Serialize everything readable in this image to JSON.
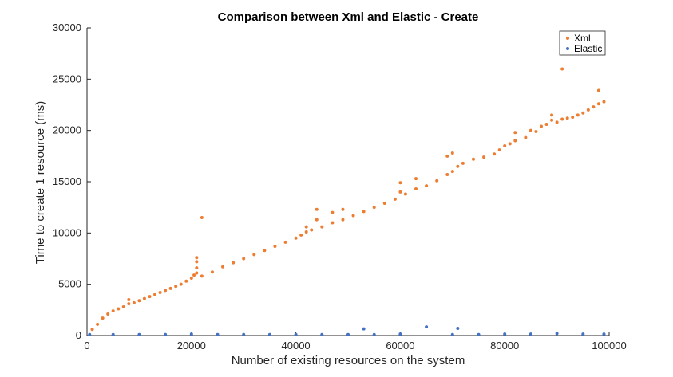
{
  "chart_data": {
    "type": "scatter",
    "title": "Comparison between Xml and Elastic - Create",
    "xlabel": "Number of existing resources on the system",
    "ylabel": "Time to create 1 resource (ms)",
    "xlim": [
      0,
      100000
    ],
    "ylim": [
      0,
      30000
    ],
    "xticks": [
      0,
      20000,
      40000,
      60000,
      80000,
      100000
    ],
    "yticks": [
      0,
      5000,
      10000,
      15000,
      20000,
      25000,
      30000
    ],
    "grid": false,
    "legend_position": "top-right",
    "series": [
      {
        "name": "Xml",
        "color": "#ed7d31",
        "points": [
          [
            1000,
            600
          ],
          [
            2000,
            1100
          ],
          [
            3000,
            1700
          ],
          [
            4000,
            2100
          ],
          [
            5000,
            2400
          ],
          [
            6000,
            2600
          ],
          [
            7000,
            2800
          ],
          [
            8000,
            3100
          ],
          [
            8000,
            3500
          ],
          [
            9000,
            3200
          ],
          [
            10000,
            3400
          ],
          [
            11000,
            3600
          ],
          [
            12000,
            3800
          ],
          [
            13000,
            4000
          ],
          [
            14000,
            4200
          ],
          [
            15000,
            4400
          ],
          [
            16000,
            4600
          ],
          [
            17000,
            4800
          ],
          [
            18000,
            5000
          ],
          [
            19000,
            5300
          ],
          [
            20000,
            5600
          ],
          [
            20500,
            5900
          ],
          [
            21000,
            6100
          ],
          [
            21000,
            6600
          ],
          [
            21000,
            7200
          ],
          [
            21000,
            7600
          ],
          [
            22000,
            5800
          ],
          [
            22000,
            11500
          ],
          [
            24000,
            6200
          ],
          [
            26000,
            6700
          ],
          [
            28000,
            7100
          ],
          [
            30000,
            7500
          ],
          [
            32000,
            7900
          ],
          [
            34000,
            8300
          ],
          [
            36000,
            8700
          ],
          [
            38000,
            9100
          ],
          [
            40000,
            9500
          ],
          [
            41000,
            9800
          ],
          [
            42000,
            10100
          ],
          [
            42000,
            10600
          ],
          [
            43000,
            10300
          ],
          [
            44000,
            11300
          ],
          [
            44000,
            12300
          ],
          [
            45000,
            10600
          ],
          [
            47000,
            11000
          ],
          [
            47000,
            12000
          ],
          [
            49000,
            11300
          ],
          [
            49000,
            12300
          ],
          [
            51000,
            11700
          ],
          [
            53000,
            12100
          ],
          [
            55000,
            12500
          ],
          [
            57000,
            12900
          ],
          [
            59000,
            13300
          ],
          [
            60000,
            14000
          ],
          [
            60000,
            14900
          ],
          [
            61000,
            13800
          ],
          [
            63000,
            14300
          ],
          [
            63000,
            15300
          ],
          [
            65000,
            14600
          ],
          [
            67000,
            15100
          ],
          [
            69000,
            15700
          ],
          [
            69000,
            17500
          ],
          [
            70000,
            16000
          ],
          [
            70000,
            17800
          ],
          [
            71000,
            16500
          ],
          [
            72000,
            16800
          ],
          [
            74000,
            17200
          ],
          [
            76000,
            17400
          ],
          [
            78000,
            17700
          ],
          [
            79000,
            18100
          ],
          [
            80000,
            18500
          ],
          [
            81000,
            18700
          ],
          [
            82000,
            19000
          ],
          [
            82000,
            19800
          ],
          [
            84000,
            19300
          ],
          [
            85000,
            20000
          ],
          [
            86000,
            19900
          ],
          [
            87000,
            20400
          ],
          [
            88000,
            20600
          ],
          [
            89000,
            21000
          ],
          [
            89000,
            21500
          ],
          [
            90000,
            20800
          ],
          [
            91000,
            21100
          ],
          [
            91000,
            26000
          ],
          [
            92000,
            21200
          ],
          [
            93000,
            21300
          ],
          [
            94000,
            21500
          ],
          [
            95000,
            21700
          ],
          [
            96000,
            22000
          ],
          [
            97000,
            22300
          ],
          [
            98000,
            22600
          ],
          [
            98000,
            23900
          ],
          [
            99000,
            22800
          ]
        ]
      },
      {
        "name": "Elastic",
        "color": "#4472c4",
        "points": [
          [
            500,
            100
          ],
          [
            5000,
            100
          ],
          [
            10000,
            100
          ],
          [
            15000,
            100
          ],
          [
            20000,
            150
          ],
          [
            25000,
            100
          ],
          [
            30000,
            100
          ],
          [
            35000,
            100
          ],
          [
            40000,
            100
          ],
          [
            45000,
            100
          ],
          [
            50000,
            100
          ],
          [
            53000,
            650
          ],
          [
            55000,
            100
          ],
          [
            60000,
            150
          ],
          [
            65000,
            850
          ],
          [
            70000,
            100
          ],
          [
            71000,
            700
          ],
          [
            75000,
            100
          ],
          [
            80000,
            150
          ],
          [
            85000,
            150
          ],
          [
            90000,
            200
          ],
          [
            95000,
            150
          ],
          [
            99000,
            150
          ]
        ]
      }
    ]
  }
}
